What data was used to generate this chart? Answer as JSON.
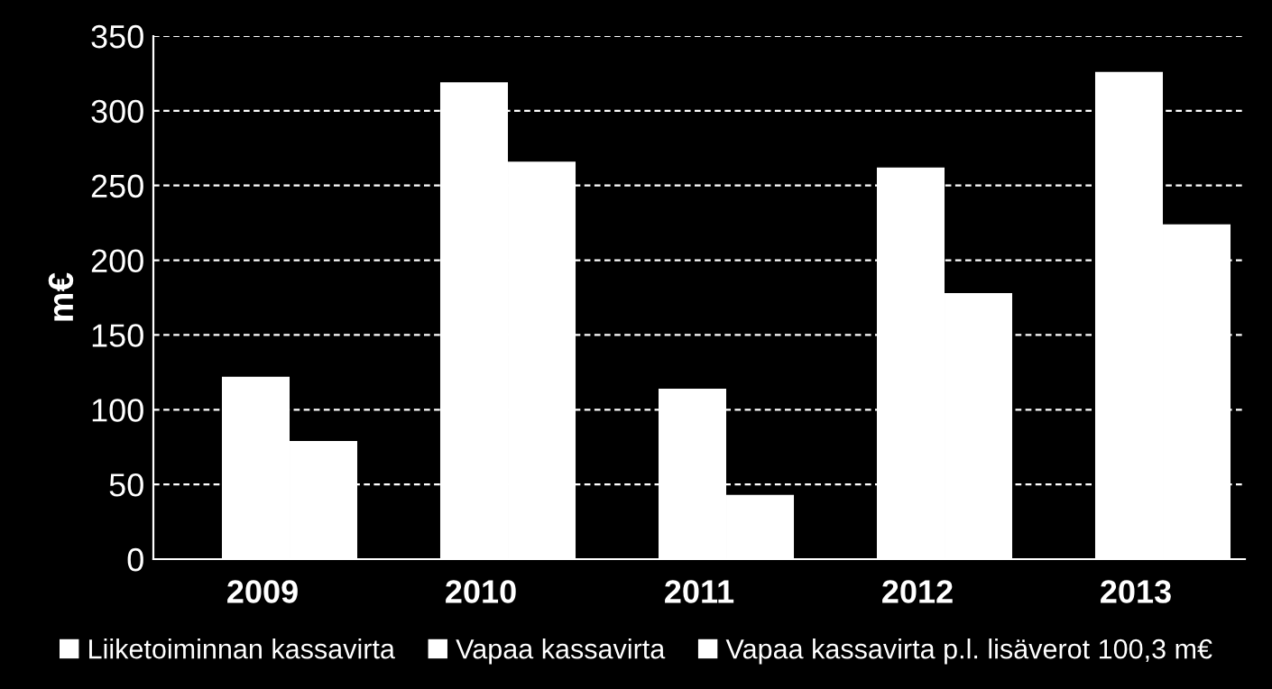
{
  "chart_data": {
    "type": "bar",
    "ylabel": "m€",
    "categories": [
      "2009",
      "2010",
      "2011",
      "2012",
      "2013"
    ],
    "series": [
      {
        "name": "Liiketoiminnan kassavirta",
        "color": "#ffffff",
        "values": [
          122,
          319,
          114,
          262,
          326
        ]
      },
      {
        "name": "Vapaa kassavirta",
        "color": "#ffffff",
        "values": [
          79,
          266,
          43,
          178,
          224
        ]
      },
      {
        "name": "Vapaa kassavirta p.l. lisäverot 100,3 m€",
        "color": "#ffffff",
        "values": [
          null,
          null,
          null,
          null,
          null
        ]
      }
    ],
    "ylim": [
      0,
      350
    ],
    "yticks": [
      0,
      50,
      100,
      150,
      200,
      250,
      300,
      350
    ],
    "grid": "y",
    "legend": "bottom"
  }
}
